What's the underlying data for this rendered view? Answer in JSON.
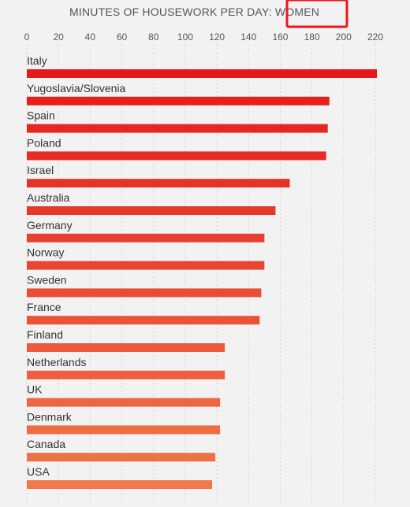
{
  "title": {
    "prefix": "MINUTES OF HOUSEWORK PER DAY: ",
    "highlight": "WOMEN",
    "highlight_box_color": "#e8171f"
  },
  "colors": {
    "background": "#f2f2f2",
    "bar_top": "#e31a1c",
    "bar_bottom": "#f0784a",
    "grid": "#d4d4d4",
    "tick_text": "#555555",
    "label_text": "#333333"
  },
  "chart_data": {
    "type": "bar",
    "orientation": "horizontal",
    "title": "MINUTES OF HOUSEWORK PER DAY: WOMEN",
    "xlabel": "",
    "ylabel": "",
    "xlim": [
      0,
      220
    ],
    "x_ticks": [
      0,
      20,
      40,
      60,
      80,
      100,
      120,
      140,
      160,
      180,
      200,
      220
    ],
    "grid": "vertical dotted",
    "categories": [
      "Italy",
      "Yugoslavia/Slovenia",
      "Spain",
      "Poland",
      "Israel",
      "Australia",
      "Germany",
      "Norway",
      "Sweden",
      "France",
      "Finland",
      "Netherlands",
      "UK",
      "Denmark",
      "Canada",
      "USA"
    ],
    "values": [
      221,
      191,
      190,
      189,
      166,
      157,
      150,
      150,
      148,
      147,
      125,
      125,
      122,
      122,
      119,
      117
    ]
  }
}
